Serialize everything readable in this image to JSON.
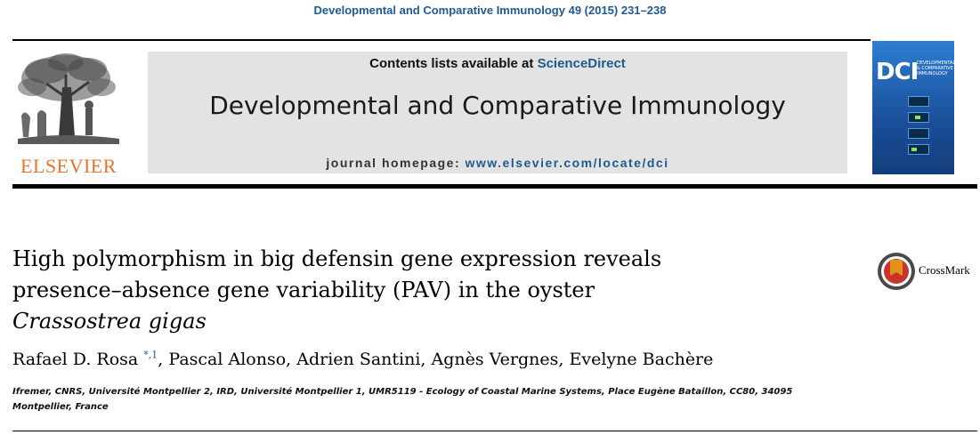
{
  "citation": "Developmental and Comparative Immunology 49 (2015) 231–238",
  "publisher": {
    "name": "ELSEVIER",
    "logo_icon": "elsevier-tree-icon"
  },
  "masthead": {
    "contents_prefix": "Contents lists available at ",
    "contents_link": "ScienceDirect",
    "journal_title": "Developmental and Comparative Immunology",
    "homepage_prefix": "journal homepage: ",
    "homepage_link": "www.elsevier.com/locate/dci"
  },
  "cover": {
    "abbr": "DCI",
    "subtitle": "DEVELOPMENTAL & COMPARATIVE IMMUNOLOGY"
  },
  "article": {
    "title_line1": "High polymorphism in big defensin gene expression reveals",
    "title_line2": "presence–absence gene variability (PAV) in the oyster",
    "title_line3": "Crassostrea gigas",
    "authors": [
      {
        "name": "Rafael D. Rosa",
        "marks": "*,1",
        "sep": ", "
      },
      {
        "name": "Pascal Alonso",
        "marks": "",
        "sep": ", "
      },
      {
        "name": "Adrien Santini",
        "marks": "",
        "sep": ", "
      },
      {
        "name": "Agnès Vergnes",
        "marks": "",
        "sep": ", "
      },
      {
        "name": "Evelyne Bachère",
        "marks": "",
        "sep": ""
      }
    ],
    "affiliation_line1": "Ifremer, CNRS, Université Montpellier 2, IRD, Université Montpellier 1, UMR5119 - Ecology of Coastal Marine Systems, Place Eugène Bataillon, CC80, 34095",
    "affiliation_line2": "Montpellier, France"
  },
  "crossmark": {
    "label": "CrossMark",
    "icon": "crossmark-icon"
  },
  "colors": {
    "link": "#1f5a92",
    "publisher": "#e8742a",
    "masthead_bg": "#e3e3e3",
    "cover": "#1a4f9a"
  }
}
